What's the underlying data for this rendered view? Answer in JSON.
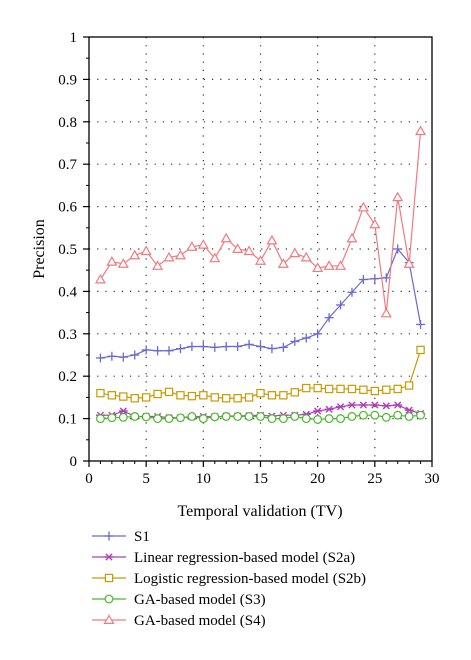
{
  "chart_data": {
    "type": "line",
    "title": "",
    "xlabel": "Temporal validation (TV)",
    "ylabel": "Precision",
    "xlim": [
      0,
      30
    ],
    "ylim": [
      0,
      1
    ],
    "xticks": [
      0,
      5,
      10,
      15,
      20,
      25,
      30
    ],
    "yticks": [
      0,
      0.1,
      0.2,
      0.3,
      0.4,
      0.5,
      0.6,
      0.7,
      0.8,
      0.9,
      1
    ],
    "grid": "dotted",
    "legend_position": "below",
    "x": [
      1,
      2,
      3,
      4,
      5,
      6,
      7,
      8,
      9,
      10,
      11,
      12,
      13,
      14,
      15,
      16,
      17,
      18,
      19,
      20,
      21,
      22,
      23,
      24,
      25,
      26,
      27,
      28,
      29
    ],
    "series": [
      {
        "name": "S1",
        "color": "#6a6ad0",
        "marker": "plus",
        "values": [
          0.243,
          0.247,
          0.245,
          0.25,
          0.262,
          0.26,
          0.26,
          0.265,
          0.27,
          0.27,
          0.268,
          0.27,
          0.27,
          0.275,
          0.27,
          0.265,
          0.268,
          0.282,
          0.29,
          0.3,
          0.338,
          0.368,
          0.398,
          0.428,
          0.43,
          0.432,
          0.5,
          0.468,
          0.322
        ]
      },
      {
        "name": "Linear regression-based model (S2a)",
        "color": "#b040b8",
        "marker": "asterisk",
        "values": [
          0.108,
          0.108,
          0.118,
          0.105,
          0.105,
          0.105,
          0.102,
          0.102,
          0.104,
          0.105,
          0.104,
          0.106,
          0.106,
          0.107,
          0.108,
          0.106,
          0.108,
          0.108,
          0.11,
          0.118,
          0.122,
          0.128,
          0.132,
          0.132,
          0.132,
          0.13,
          0.132,
          0.12,
          0.112
        ]
      },
      {
        "name": "Logistic regression-based model (S2b)",
        "color": "#c89a00",
        "marker": "square",
        "values": [
          0.16,
          0.155,
          0.152,
          0.148,
          0.15,
          0.158,
          0.163,
          0.155,
          0.153,
          0.155,
          0.15,
          0.148,
          0.148,
          0.15,
          0.16,
          0.155,
          0.155,
          0.162,
          0.172,
          0.172,
          0.17,
          0.17,
          0.17,
          0.168,
          0.165,
          0.168,
          0.17,
          0.178,
          0.262
        ]
      },
      {
        "name": "GA-based model (S3)",
        "color": "#4ab82a",
        "marker": "circle",
        "values": [
          0.1,
          0.102,
          0.103,
          0.105,
          0.104,
          0.1,
          0.1,
          0.102,
          0.105,
          0.1,
          0.104,
          0.105,
          0.105,
          0.105,
          0.105,
          0.1,
          0.1,
          0.105,
          0.1,
          0.098,
          0.1,
          0.1,
          0.105,
          0.108,
          0.108,
          0.103,
          0.108,
          0.105,
          0.108
        ]
      },
      {
        "name": "GA-based model (S4)",
        "color": "#f07a80",
        "marker": "triangle",
        "values": [
          0.428,
          0.47,
          0.465,
          0.485,
          0.495,
          0.46,
          0.48,
          0.485,
          0.505,
          0.51,
          0.478,
          0.525,
          0.5,
          0.495,
          0.472,
          0.52,
          0.465,
          0.49,
          0.48,
          0.455,
          0.46,
          0.46,
          0.525,
          0.598,
          0.558,
          0.348,
          0.622,
          0.465,
          0.778
        ]
      }
    ]
  }
}
